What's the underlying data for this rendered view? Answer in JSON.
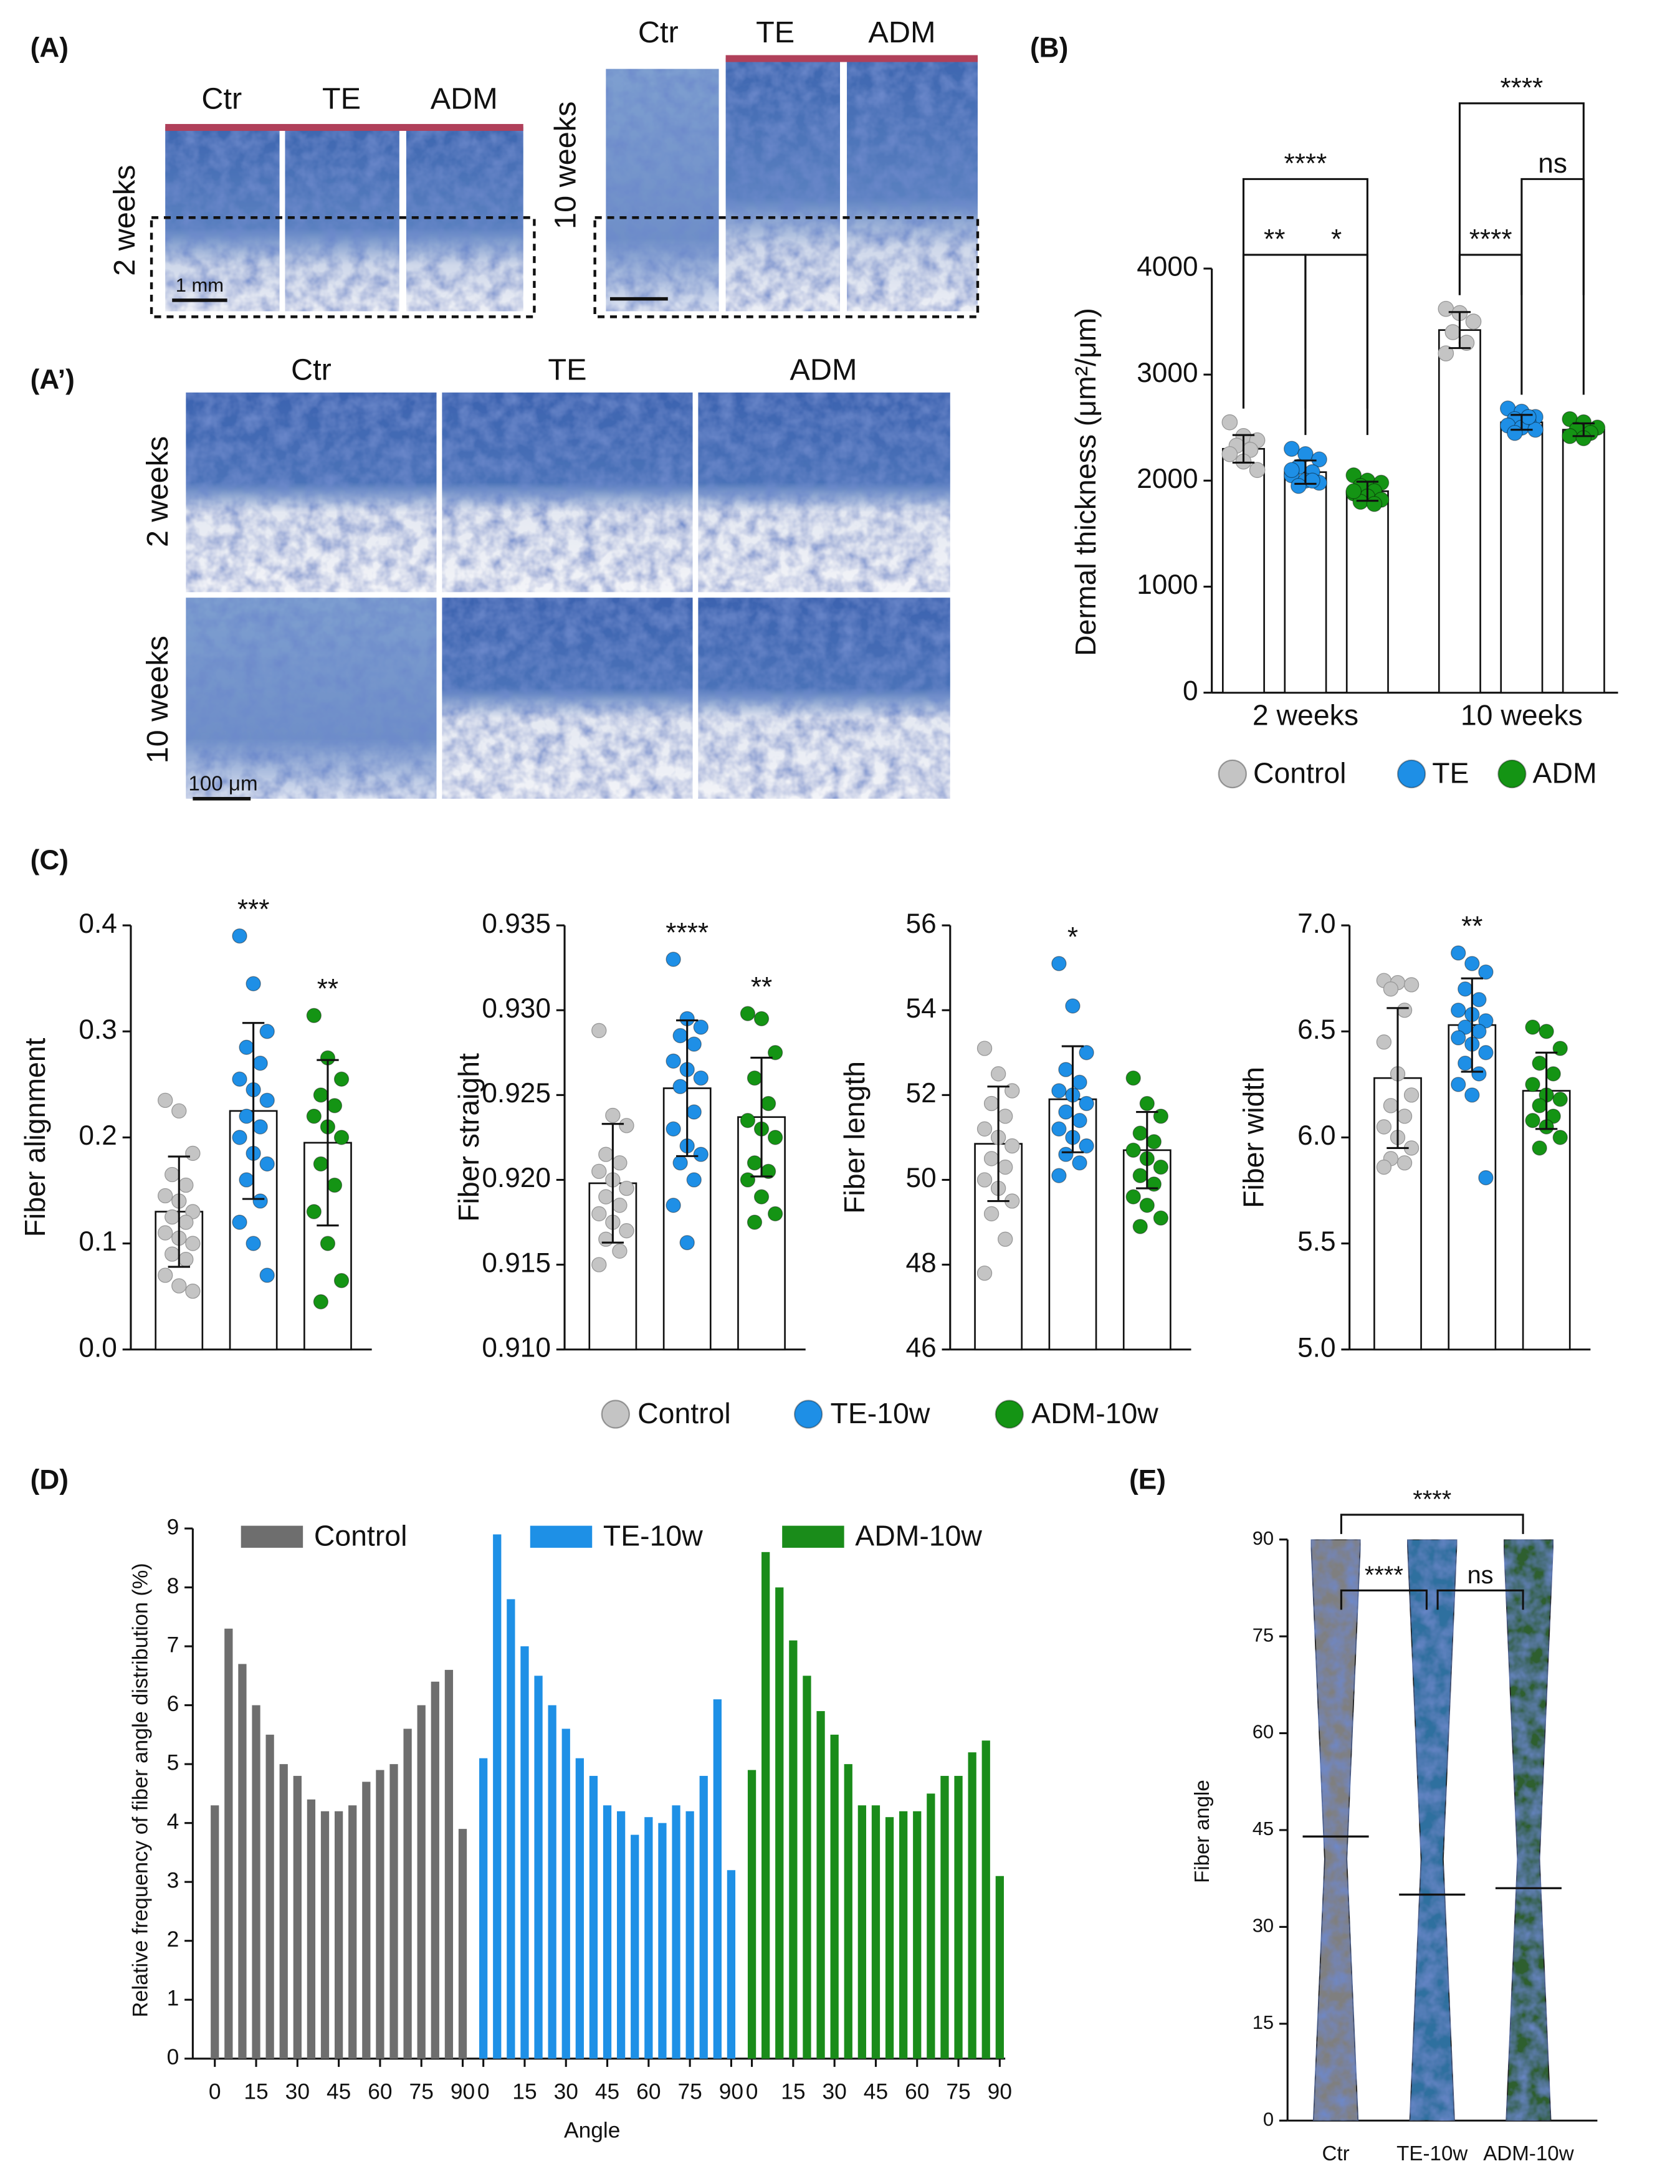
{
  "panel_labels": [
    "(A)",
    "(A’)",
    "(B)",
    "(C)",
    "(D)",
    "(E)"
  ],
  "histology": {
    "columns": [
      "Ctr",
      "TE",
      "ADM"
    ],
    "rows": [
      "2 weeks",
      "10 weeks"
    ],
    "scale_bars": [
      "1 mm",
      "100 μm"
    ]
  },
  "chart_data": [
    {
      "type": "grouped_bar",
      "ylabel": "Dermal thickness (μm²/μm)",
      "categories": [
        "2 weeks",
        "10 weeks"
      ],
      "ylim": [
        0,
        4000
      ],
      "yticks": [
        0,
        1000,
        2000,
        3000,
        4000
      ],
      "series": [
        {
          "name": "Control",
          "color": "#c4c4c4",
          "values": [
            2300,
            3420
          ],
          "errors": [
            130,
            170
          ],
          "points": [
            [
              2550,
              2420,
              2380,
              2330,
              2290,
              2250,
              2180,
              2100
            ],
            [
              3620,
              3580,
              3500,
              3400,
              3300,
              3200
            ]
          ]
        },
        {
          "name": "TE",
          "color": "#1e8fe6",
          "values": [
            2080,
            2550
          ],
          "errors": [
            110,
            70
          ],
          "points": [
            [
              2300,
              2250,
              2200,
              2130,
              2080,
              2050,
              2000,
              1980,
              1950,
              2000,
              2100
            ],
            [
              2680,
              2650,
              2600,
              2580,
              2550,
              2520,
              2500,
              2480,
              2450,
              2600
            ]
          ]
        },
        {
          "name": "ADM",
          "color": "#149414",
          "values": [
            1900,
            2480
          ],
          "errors": [
            90,
            60
          ],
          "points": [
            [
              2050,
              2000,
              1980,
              1950,
              1900,
              1880,
              1850,
              1820,
              1800,
              1780,
              1900
            ],
            [
              2580,
              2550,
              2500,
              2480,
              2450,
              2420,
              2400
            ]
          ]
        }
      ],
      "annotations": [
        "**",
        "*",
        "****",
        "****",
        "ns",
        "****"
      ]
    },
    {
      "type": "dot_bar",
      "ylabel": "Fiber alignment",
      "ylim": [
        0,
        0.4
      ],
      "yticks": [
        {
          "value": 0,
          "label": "0.0"
        },
        0.1,
        0.2,
        0.3,
        0.4
      ],
      "annotations": [
        null,
        "***",
        "**"
      ],
      "series": [
        {
          "name": "Control",
          "color": "#c4c4c4",
          "values": [
            0.13,
            0.225,
            0.195
          ],
          "errors": [
            0.052,
            0.083,
            0.078
          ],
          "points": [
            [
              0.235,
              0.225,
              0.185,
              0.165,
              0.155,
              0.145,
              0.14,
              0.13,
              0.125,
              0.12,
              0.11,
              0.105,
              0.1,
              0.09,
              0.085,
              0.07,
              0.06,
              0.055
            ],
            [
              0.39,
              0.345,
              0.3,
              0.285,
              0.27,
              0.255,
              0.245,
              0.235,
              0.22,
              0.21,
              0.2,
              0.185,
              0.175,
              0.16,
              0.14,
              0.12,
              0.1,
              0.07
            ],
            [
              0.315,
              0.275,
              0.255,
              0.24,
              0.23,
              0.22,
              0.21,
              0.2,
              0.175,
              0.155,
              0.13,
              0.1,
              0.065,
              0.045
            ]
          ]
        },
        {
          "name": "TE-10w",
          "color": "#1e8fe6"
        },
        {
          "name": "ADM-10w",
          "color": "#149414"
        }
      ]
    },
    {
      "type": "dot_bar",
      "ylabel": "Fiber straight",
      "ylim": [
        0.91,
        0.935
      ],
      "yticks": [
        {
          "value": 0.91,
          "label": "0.910"
        },
        0.915,
        {
          "value": 0.92,
          "label": "0.920"
        },
        0.925,
        {
          "value": 0.93,
          "label": "0.930"
        },
        0.935
      ],
      "annotations": [
        null,
        "****",
        "**"
      ],
      "series": [
        {
          "values": [
            0.9198,
            0.9254,
            0.9237
          ],
          "errors": [
            0.0035,
            0.004,
            0.0035
          ],
          "points": [
            [
              0.9288,
              0.9238,
              0.9232,
              0.9215,
              0.921,
              0.9205,
              0.92,
              0.9195,
              0.919,
              0.9185,
              0.918,
              0.9175,
              0.917,
              0.9165,
              0.9158,
              0.915
            ],
            [
              0.933,
              0.9295,
              0.929,
              0.9285,
              0.928,
              0.927,
              0.9265,
              0.926,
              0.9255,
              0.924,
              0.923,
              0.922,
              0.9215,
              0.921,
              0.92,
              0.9185,
              0.9163
            ],
            [
              0.9298,
              0.9295,
              0.9275,
              0.926,
              0.9245,
              0.9235,
              0.923,
              0.9225,
              0.921,
              0.9205,
              0.92,
              0.919,
              0.918,
              0.9175
            ]
          ]
        }
      ]
    },
    {
      "type": "dot_bar",
      "ylabel": "Fiber length",
      "ylim": [
        46,
        56
      ],
      "yticks": [
        46,
        48,
        50,
        52,
        54,
        56
      ],
      "annotations": [
        null,
        "*",
        null
      ],
      "series": [
        {
          "values": [
            50.85,
            51.9,
            50.7
          ],
          "errors": [
            1.35,
            1.25,
            0.9
          ],
          "points": [
            [
              53.1,
              52.5,
              52.1,
              51.8,
              51.5,
              51.2,
              51,
              50.8,
              50.5,
              50.3,
              50,
              49.8,
              49.5,
              49.2,
              48.6,
              47.8
            ],
            [
              55.1,
              54.1,
              53,
              52.6,
              52.3,
              52.1,
              52,
              51.8,
              51.6,
              51.4,
              51.2,
              51,
              50.8,
              50.6,
              50.4,
              50.1
            ],
            [
              52.4,
              51.8,
              51.5,
              51.1,
              50.9,
              50.7,
              50.5,
              50.3,
              50.1,
              49.9,
              49.6,
              49.4,
              49.1,
              48.9
            ]
          ]
        }
      ]
    },
    {
      "type": "dot_bar",
      "ylabel": "Fiber width",
      "ylim": [
        5,
        7
      ],
      "yticks": [
        {
          "value": 5,
          "label": "5.0"
        },
        5.5,
        {
          "value": 6,
          "label": "6.0"
        },
        6.5,
        {
          "value": 7,
          "label": "7.0"
        }
      ],
      "annotations": [
        null,
        "**",
        null
      ],
      "series": [
        {
          "values": [
            6.28,
            6.53,
            6.22
          ],
          "errors": [
            0.33,
            0.22,
            0.18
          ],
          "points": [
            [
              6.74,
              6.73,
              6.72,
              6.7,
              6.6,
              6.45,
              6.3,
              6.2,
              6.15,
              6.1,
              6.05,
              6,
              5.95,
              5.9,
              5.88,
              5.86
            ],
            [
              6.87,
              6.82,
              6.78,
              6.7,
              6.65,
              6.6,
              6.58,
              6.55,
              6.52,
              6.5,
              6.47,
              6.44,
              6.4,
              6.35,
              6.3,
              6.25,
              6.2,
              5.81
            ],
            [
              6.52,
              6.5,
              6.42,
              6.35,
              6.3,
              6.25,
              6.2,
              6.18,
              6.15,
              6.1,
              6.08,
              6.05,
              6,
              5.95
            ]
          ]
        }
      ]
    },
    {
      "type": "bar_groups",
      "ylabel": "Relative frequency of fiber angle distribution (%)",
      "xlabel": "Angle",
      "x": [
        0,
        5,
        10,
        15,
        20,
        25,
        30,
        35,
        40,
        45,
        50,
        55,
        60,
        65,
        70,
        75,
        80,
        85,
        90
      ],
      "xticks": [
        0,
        15,
        30,
        45,
        60,
        75,
        90
      ],
      "ylim": [
        0,
        9
      ],
      "yticks": [
        0,
        1,
        2,
        3,
        4,
        5,
        6,
        7,
        8,
        9
      ],
      "series": [
        {
          "name": "Control",
          "color": "#6e6e6e",
          "values": [
            4.3,
            7.3,
            6.7,
            6.0,
            5.5,
            5.0,
            4.8,
            4.4,
            4.2,
            4.2,
            4.3,
            4.7,
            4.9,
            5.0,
            5.6,
            6.0,
            6.4,
            6.6,
            3.9
          ]
        },
        {
          "name": "TE-10w",
          "color": "#1e90e6",
          "values": [
            5.1,
            8.9,
            7.8,
            7.0,
            6.5,
            6.0,
            5.6,
            5.1,
            4.8,
            4.3,
            4.2,
            3.8,
            4.1,
            4.0,
            4.3,
            4.2,
            4.8,
            6.1,
            3.2
          ]
        },
        {
          "name": "ADM-10w",
          "color": "#1a8c1a",
          "values": [
            4.9,
            8.6,
            8.0,
            7.1,
            6.5,
            5.9,
            5.5,
            5.0,
            4.3,
            4.3,
            4.1,
            4.2,
            4.2,
            4.5,
            4.8,
            4.8,
            5.2,
            5.4,
            3.1
          ]
        }
      ]
    },
    {
      "type": "scatter_dist",
      "ylabel": "Fiber angle",
      "categories": [
        "Ctr",
        "TE-10w",
        "ADM-10w"
      ],
      "colors": [
        "#7f7f7f",
        "#2f6f9f",
        "#2e5e2e"
      ],
      "medians": [
        44,
        35,
        36
      ],
      "ylim": [
        0,
        90
      ],
      "yticks": [
        0,
        15,
        30,
        45,
        60,
        75,
        90
      ],
      "annotations": [
        "****",
        "****",
        "ns"
      ]
    }
  ]
}
